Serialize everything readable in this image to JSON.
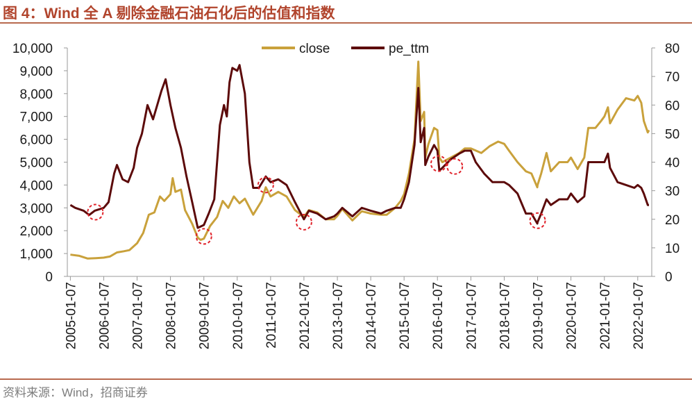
{
  "figure": {
    "title": "图 4：Wind 全 A 剔除金融石油石化后的估值和指数",
    "source": "资料来源：Wind，招商证券"
  },
  "colors": {
    "title": "#b1442c",
    "rule": "#b8694e",
    "close": "#c9a13b",
    "pe_ttm": "#5c0a0a",
    "marker": "#e0222a",
    "text": "#1a1a1a"
  },
  "chart_data": {
    "type": "line",
    "title": "",
    "legend_position": "top",
    "grid": false,
    "x_axis": {
      "type": "date",
      "range": [
        "2005-01-04",
        "2022-05-10"
      ],
      "tick_labels": [
        "2005-01-07",
        "2006-01-07",
        "2007-01-07",
        "2008-01-07",
        "2009-01-07",
        "2010-01-07",
        "2011-01-07",
        "2012-01-07",
        "2013-01-07",
        "2014-01-07",
        "2015-01-07",
        "2016-01-07",
        "2017-01-07",
        "2018-01-07",
        "2019-01-07",
        "2020-01-07",
        "2021-01-07",
        "2022-01-07"
      ]
    },
    "y_axis_left": {
      "series": "close",
      "range": [
        0,
        10000
      ],
      "tick_labels": [
        "0",
        "1,000",
        "2,000",
        "3,000",
        "4,000",
        "5,000",
        "6,000",
        "7,000",
        "8,000",
        "9,000",
        "10,000"
      ]
    },
    "y_axis_right": {
      "series": "pe_ttm",
      "range": [
        0,
        80
      ],
      "tick_labels": [
        "0",
        "10",
        "20",
        "30",
        "40",
        "50",
        "60",
        "70",
        "80"
      ]
    },
    "series": [
      {
        "name": "close",
        "axis": "left",
        "points": [
          [
            "2005-01-07",
            950
          ],
          [
            "2005-04-15",
            900
          ],
          [
            "2005-07-15",
            780
          ],
          [
            "2005-10-15",
            800
          ],
          [
            "2006-01-07",
            820
          ],
          [
            "2006-03-15",
            870
          ],
          [
            "2006-06-01",
            1050
          ],
          [
            "2006-08-15",
            1100
          ],
          [
            "2006-10-15",
            1150
          ],
          [
            "2007-01-07",
            1450
          ],
          [
            "2007-03-15",
            1900
          ],
          [
            "2007-05-15",
            2700
          ],
          [
            "2007-07-15",
            2800
          ],
          [
            "2007-09-15",
            3500
          ],
          [
            "2007-11-01",
            3300
          ],
          [
            "2008-01-07",
            3600
          ],
          [
            "2008-02-01",
            4300
          ],
          [
            "2008-03-01",
            3700
          ],
          [
            "2008-05-01",
            3800
          ],
          [
            "2008-06-15",
            2900
          ],
          [
            "2008-09-01",
            2300
          ],
          [
            "2008-11-01",
            1700
          ],
          [
            "2008-12-01",
            1600
          ],
          [
            "2009-01-07",
            1650
          ],
          [
            "2009-03-15",
            2200
          ],
          [
            "2009-06-01",
            2600
          ],
          [
            "2009-08-01",
            3300
          ],
          [
            "2009-10-01",
            3000
          ],
          [
            "2009-12-01",
            3500
          ],
          [
            "2010-02-01",
            3200
          ],
          [
            "2010-04-01",
            3400
          ],
          [
            "2010-07-01",
            2700
          ],
          [
            "2010-10-01",
            3300
          ],
          [
            "2010-11-15",
            3900
          ],
          [
            "2011-01-07",
            3500
          ],
          [
            "2011-04-01",
            3700
          ],
          [
            "2011-07-01",
            3500
          ],
          [
            "2011-10-01",
            2900
          ],
          [
            "2012-01-07",
            2600
          ],
          [
            "2012-03-01",
            2900
          ],
          [
            "2012-06-01",
            2800
          ],
          [
            "2012-09-01",
            2500
          ],
          [
            "2012-12-01",
            2500
          ],
          [
            "2013-01-07",
            2650
          ],
          [
            "2013-03-01",
            2950
          ],
          [
            "2013-06-20",
            2450
          ],
          [
            "2013-10-01",
            2850
          ],
          [
            "2014-01-07",
            2750
          ],
          [
            "2014-05-01",
            2700
          ],
          [
            "2014-07-01",
            2700
          ],
          [
            "2014-10-01",
            3000
          ],
          [
            "2014-12-01",
            3300
          ],
          [
            "2015-01-07",
            3600
          ],
          [
            "2015-03-01",
            4500
          ],
          [
            "2015-05-01",
            6000
          ],
          [
            "2015-06-12",
            9400
          ],
          [
            "2015-07-08",
            6800
          ],
          [
            "2015-08-15",
            7200
          ],
          [
            "2015-08-27",
            5200
          ],
          [
            "2015-10-01",
            5800
          ],
          [
            "2015-12-01",
            6500
          ],
          [
            "2016-01-07",
            6400
          ],
          [
            "2016-01-28",
            5200
          ],
          [
            "2016-03-01",
            5000
          ],
          [
            "2016-06-01",
            5200
          ],
          [
            "2016-09-01",
            5400
          ],
          [
            "2016-11-01",
            5600
          ],
          [
            "2017-01-07",
            5600
          ],
          [
            "2017-05-01",
            5400
          ],
          [
            "2017-08-01",
            5700
          ],
          [
            "2017-11-01",
            5900
          ],
          [
            "2018-01-07",
            5800
          ],
          [
            "2018-03-01",
            5500
          ],
          [
            "2018-06-01",
            5000
          ],
          [
            "2018-09-01",
            4600
          ],
          [
            "2018-11-01",
            4500
          ],
          [
            "2019-01-04",
            3900
          ],
          [
            "2019-01-07",
            4000
          ],
          [
            "2019-02-15",
            4500
          ],
          [
            "2019-04-15",
            5400
          ],
          [
            "2019-06-01",
            4600
          ],
          [
            "2019-09-01",
            5000
          ],
          [
            "2019-12-01",
            5000
          ],
          [
            "2020-01-07",
            5200
          ],
          [
            "2020-03-20",
            4700
          ],
          [
            "2020-06-01",
            5200
          ],
          [
            "2020-07-15",
            6500
          ],
          [
            "2020-10-01",
            6500
          ],
          [
            "2020-12-01",
            6800
          ],
          [
            "2021-01-07",
            7000
          ],
          [
            "2021-02-15",
            7400
          ],
          [
            "2021-03-10",
            6700
          ],
          [
            "2021-06-01",
            7300
          ],
          [
            "2021-09-01",
            7800
          ],
          [
            "2021-12-01",
            7700
          ],
          [
            "2022-01-07",
            7900
          ],
          [
            "2022-02-15",
            7600
          ],
          [
            "2022-03-15",
            6800
          ],
          [
            "2022-04-27",
            6300
          ],
          [
            "2022-05-10",
            6400
          ]
        ]
      },
      {
        "name": "pe_ttm",
        "axis": "right",
        "points": [
          [
            "2005-01-07",
            25
          ],
          [
            "2005-03-01",
            24
          ],
          [
            "2005-06-01",
            23
          ],
          [
            "2005-08-01",
            21.5
          ],
          [
            "2005-10-01",
            23
          ],
          [
            "2006-01-07",
            24
          ],
          [
            "2006-03-01",
            26
          ],
          [
            "2006-05-01",
            36
          ],
          [
            "2006-06-01",
            39
          ],
          [
            "2006-08-01",
            34
          ],
          [
            "2006-10-01",
            33
          ],
          [
            "2006-12-01",
            38
          ],
          [
            "2007-01-07",
            45
          ],
          [
            "2007-03-01",
            50
          ],
          [
            "2007-05-01",
            60
          ],
          [
            "2007-07-01",
            55
          ],
          [
            "2007-10-01",
            65
          ],
          [
            "2007-11-15",
            69
          ],
          [
            "2008-01-07",
            60
          ],
          [
            "2008-03-01",
            52
          ],
          [
            "2008-05-01",
            45
          ],
          [
            "2008-07-01",
            35
          ],
          [
            "2008-09-01",
            26
          ],
          [
            "2008-11-01",
            17
          ],
          [
            "2009-01-07",
            18
          ],
          [
            "2009-03-01",
            22
          ],
          [
            "2009-05-01",
            27
          ],
          [
            "2009-07-01",
            53
          ],
          [
            "2009-08-15",
            60
          ],
          [
            "2009-09-15",
            56
          ],
          [
            "2009-10-15",
            68
          ],
          [
            "2009-11-15",
            73
          ],
          [
            "2010-01-07",
            72
          ],
          [
            "2010-02-01",
            74
          ],
          [
            "2010-04-01",
            64
          ],
          [
            "2010-05-20",
            40
          ],
          [
            "2010-07-01",
            31
          ],
          [
            "2010-09-01",
            31
          ],
          [
            "2010-11-15",
            35
          ],
          [
            "2011-01-07",
            33
          ],
          [
            "2011-04-01",
            34
          ],
          [
            "2011-07-01",
            32
          ],
          [
            "2011-10-01",
            26
          ],
          [
            "2012-01-07",
            20
          ],
          [
            "2012-03-01",
            23
          ],
          [
            "2012-06-01",
            22
          ],
          [
            "2012-09-01",
            20
          ],
          [
            "2012-12-01",
            21
          ],
          [
            "2013-01-07",
            22
          ],
          [
            "2013-03-01",
            24
          ],
          [
            "2013-06-20",
            21
          ],
          [
            "2013-10-01",
            24
          ],
          [
            "2014-01-07",
            23
          ],
          [
            "2014-05-01",
            22
          ],
          [
            "2014-07-01",
            23
          ],
          [
            "2014-10-01",
            24
          ],
          [
            "2014-12-01",
            24
          ],
          [
            "2015-01-07",
            27
          ],
          [
            "2015-03-01",
            33
          ],
          [
            "2015-05-01",
            46
          ],
          [
            "2015-06-12",
            66
          ],
          [
            "2015-07-08",
            47
          ],
          [
            "2015-08-15",
            52
          ],
          [
            "2015-08-27",
            39
          ],
          [
            "2015-10-01",
            42
          ],
          [
            "2015-12-01",
            46
          ],
          [
            "2016-01-07",
            44
          ],
          [
            "2016-01-28",
            37
          ],
          [
            "2016-03-01",
            38
          ],
          [
            "2016-06-01",
            41
          ],
          [
            "2016-09-01",
            43
          ],
          [
            "2016-11-01",
            44
          ],
          [
            "2017-01-07",
            44
          ],
          [
            "2017-03-01",
            40
          ],
          [
            "2017-06-01",
            36
          ],
          [
            "2017-09-01",
            33
          ],
          [
            "2018-01-07",
            33
          ],
          [
            "2018-03-01",
            32
          ],
          [
            "2018-06-01",
            29
          ],
          [
            "2018-09-01",
            22
          ],
          [
            "2018-11-01",
            22
          ],
          [
            "2019-01-04",
            18.5
          ],
          [
            "2019-01-07",
            19
          ],
          [
            "2019-02-15",
            22
          ],
          [
            "2019-04-15",
            27
          ],
          [
            "2019-06-01",
            25
          ],
          [
            "2019-09-01",
            27
          ],
          [
            "2019-12-01",
            27
          ],
          [
            "2020-01-07",
            29
          ],
          [
            "2020-03-20",
            26
          ],
          [
            "2020-06-01",
            28
          ],
          [
            "2020-07-15",
            40
          ],
          [
            "2020-10-01",
            40
          ],
          [
            "2020-12-01",
            40
          ],
          [
            "2021-01-07",
            40
          ],
          [
            "2021-02-15",
            43
          ],
          [
            "2021-03-10",
            38
          ],
          [
            "2021-06-01",
            33
          ],
          [
            "2021-09-01",
            32
          ],
          [
            "2021-12-01",
            31
          ],
          [
            "2022-01-07",
            32
          ],
          [
            "2022-02-15",
            31
          ],
          [
            "2022-03-15",
            29
          ],
          [
            "2022-04-27",
            25
          ],
          [
            "2022-05-10",
            25
          ]
        ]
      }
    ],
    "markers": [
      {
        "x": "2005-10-07",
        "axis": "right",
        "y": 22.5
      },
      {
        "x": "2009-01-07",
        "axis": "right",
        "y": 14
      },
      {
        "x": "2010-11-15",
        "axis": "right",
        "y": 32
      },
      {
        "x": "2012-01-07",
        "axis": "right",
        "y": 19
      },
      {
        "x": "2016-01-20",
        "axis": "right",
        "y": 39.5
      },
      {
        "x": "2016-07-15",
        "axis": "right",
        "y": 38.5
      },
      {
        "x": "2019-01-07",
        "axis": "right",
        "y": 19.5
      }
    ]
  }
}
